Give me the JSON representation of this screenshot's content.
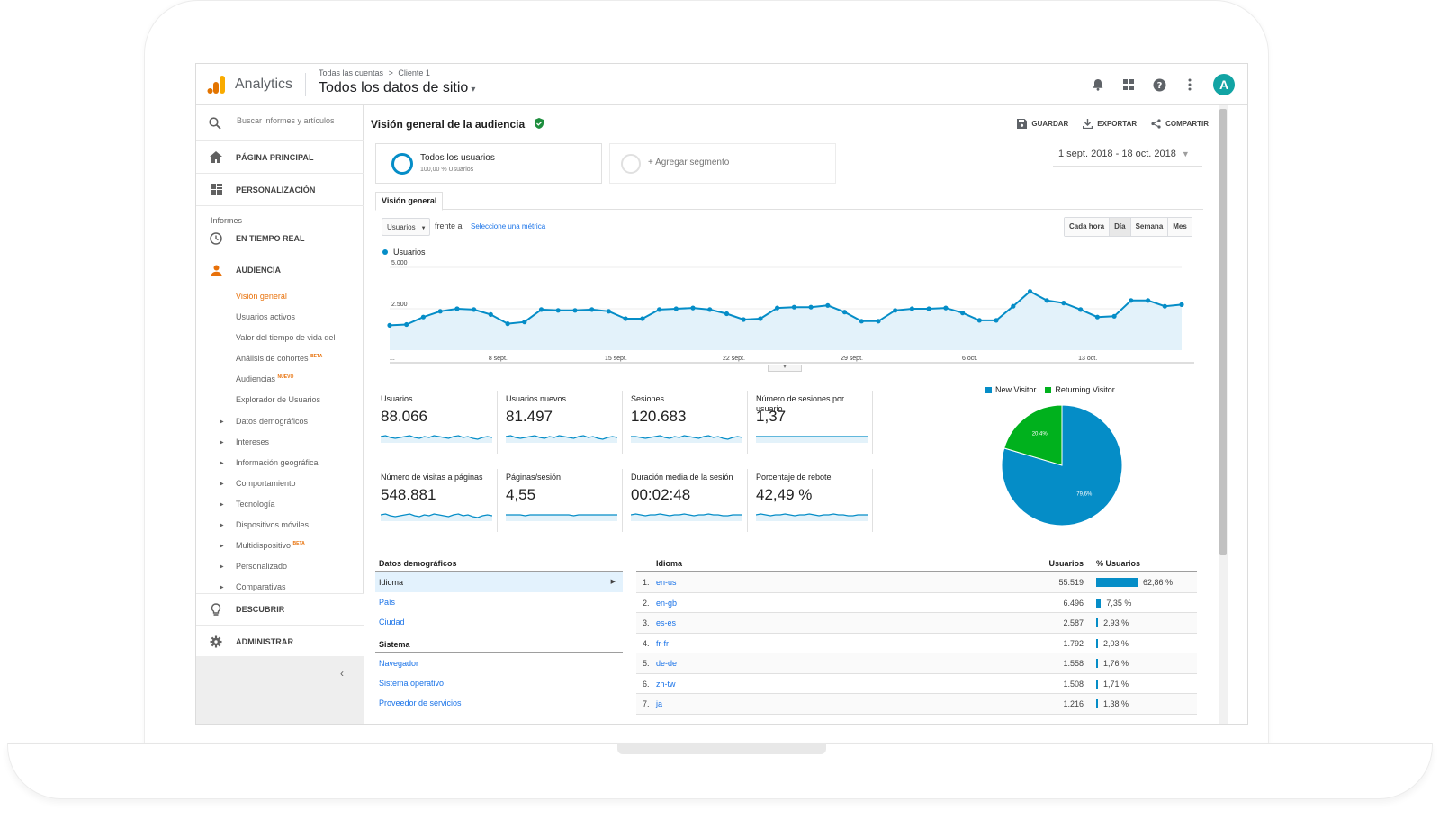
{
  "header": {
    "app_name": "Analytics",
    "breadcrumb": [
      "Todas las cuentas",
      ">",
      "Cliente 1"
    ],
    "property": "Todos los datos de sitio",
    "avatar_letter": "A",
    "icons": [
      "bell-icon",
      "apps-icon",
      "help-icon",
      "more-vert-icon"
    ]
  },
  "sidebar": {
    "search_placeholder": "Buscar informes y artículos",
    "home": "PÁGINA PRINCIPAL",
    "customization": "PERSONALIZACIÓN",
    "reports_label": "Informes",
    "realtime": "EN TIEMPO REAL",
    "audience": "AUDIENCIA",
    "audience_items": [
      {
        "label": "Visión general",
        "badge": ""
      },
      {
        "label": "Usuarios activos",
        "badge": ""
      },
      {
        "label": "Valor del tiempo de vida del",
        "badge": ""
      },
      {
        "label": "Análisis de cohortes",
        "badge": "BETA"
      },
      {
        "label": "Audiencias",
        "badge": "NUEVO"
      },
      {
        "label": "Explorador de Usuarios",
        "badge": ""
      },
      {
        "label": "Datos demográficos",
        "badge": ""
      },
      {
        "label": "Intereses",
        "badge": ""
      },
      {
        "label": "Información geográfica",
        "badge": ""
      },
      {
        "label": "Comportamiento",
        "badge": ""
      },
      {
        "label": "Tecnología",
        "badge": ""
      },
      {
        "label": "Dispositivos móviles",
        "badge": ""
      },
      {
        "label": "Multidispositivo",
        "badge": "BETA"
      },
      {
        "label": "Personalizado",
        "badge": ""
      },
      {
        "label": "Comparativas",
        "badge": ""
      }
    ],
    "discover": "DESCUBRIR",
    "admin": "ADMINISTRAR"
  },
  "main": {
    "title": "Visión general de la audiencia",
    "actions": {
      "save": "GUARDAR",
      "export": "EXPORTAR",
      "share": "COMPARTIR"
    },
    "segment": {
      "title": "Todos los usuarios",
      "sub": "100,00 % Usuarios",
      "add": "+ Agregar segmento"
    },
    "date_range": "1 sept. 2018 - 18 oct. 2018",
    "tab": "Visión general",
    "metric_select": "Usuarios",
    "versus": "frente a",
    "select_metric": "Seleccione una métrica",
    "granularity": [
      "Cada hora",
      "Día",
      "Semana",
      "Mes"
    ],
    "granularity_active": "Día"
  },
  "chart_data": {
    "type": "area",
    "series": [
      {
        "name": "Usuarios",
        "values": [
          1500,
          1550,
          2000,
          2350,
          2500,
          2450,
          2150,
          1600,
          1700,
          2450,
          2400,
          2400,
          2450,
          2350,
          1900,
          1900,
          2450,
          2500,
          2550,
          2450,
          2200,
          1850,
          1900,
          2550,
          2600,
          2600,
          2700,
          2300,
          1750,
          1750,
          2400,
          2500,
          2500,
          2550,
          2250,
          1800,
          1800,
          2650,
          3550,
          3000,
          2850,
          2450,
          2000,
          2050,
          3000,
          3000,
          2650,
          2750
        ]
      }
    ],
    "x_tick_labels": [
      "...",
      "8 sept.",
      "15 sept.",
      "22 sept.",
      "29 sept.",
      "6 oct.",
      "13 oct."
    ],
    "y_tick_labels": [
      "5.000",
      "2.500"
    ],
    "ylim": [
      0,
      5000
    ],
    "color": "#058dc7",
    "fill": "#e3f2fa"
  },
  "scorecards": [
    {
      "label": "Usuarios",
      "value": "88.066"
    },
    {
      "label": "Usuarios nuevos",
      "value": "81.497"
    },
    {
      "label": "Sesiones",
      "value": "120.683"
    },
    {
      "label": "Número de sesiones por usuario",
      "value": "1,37"
    },
    {
      "label": "Número de visitas a páginas",
      "value": "548.881"
    },
    {
      "label": "Páginas/sesión",
      "value": "4,55"
    },
    {
      "label": "Duración media de la sesión",
      "value": "00:02:48"
    },
    {
      "label": "Porcentaje de rebote",
      "value": "42,49 %"
    }
  ],
  "pie": {
    "legend": [
      {
        "name": "New Visitor",
        "color": "#058dc7"
      },
      {
        "name": "Returning Visitor",
        "color": "#00b11d"
      }
    ],
    "slices": [
      {
        "name": "New Visitor",
        "value": 79.6,
        "label": "79,6%"
      },
      {
        "name": "Returning Visitor",
        "value": 20.4,
        "label": "20,4%"
      }
    ]
  },
  "left_table": {
    "section1": "Datos demográficos",
    "items1": [
      "Idioma",
      "País",
      "Ciudad"
    ],
    "section2": "Sistema",
    "items2": [
      "Navegador",
      "Sistema operativo",
      "Proveedor de servicios"
    ]
  },
  "right_table": {
    "headers": {
      "dimension": "Idioma",
      "users": "Usuarios",
      "pct": "% Usuarios"
    },
    "rows": [
      {
        "idx": "1.",
        "lang": "en-us",
        "users": "55.519",
        "pct": "62,86 %",
        "value": 62.86
      },
      {
        "idx": "2.",
        "lang": "en-gb",
        "users": "6.496",
        "pct": "7,35 %",
        "value": 7.35
      },
      {
        "idx": "3.",
        "lang": "es-es",
        "users": "2.587",
        "pct": "2,93 %",
        "value": 2.93
      },
      {
        "idx": "4.",
        "lang": "fr-fr",
        "users": "1.792",
        "pct": "2,03 %",
        "value": 2.03
      },
      {
        "idx": "5.",
        "lang": "de-de",
        "users": "1.558",
        "pct": "1,76 %",
        "value": 1.76
      },
      {
        "idx": "6.",
        "lang": "zh-tw",
        "users": "1.508",
        "pct": "1,71 %",
        "value": 1.71
      },
      {
        "idx": "7.",
        "lang": "ja",
        "users": "1.216",
        "pct": "1,38 %",
        "value": 1.38
      }
    ]
  }
}
